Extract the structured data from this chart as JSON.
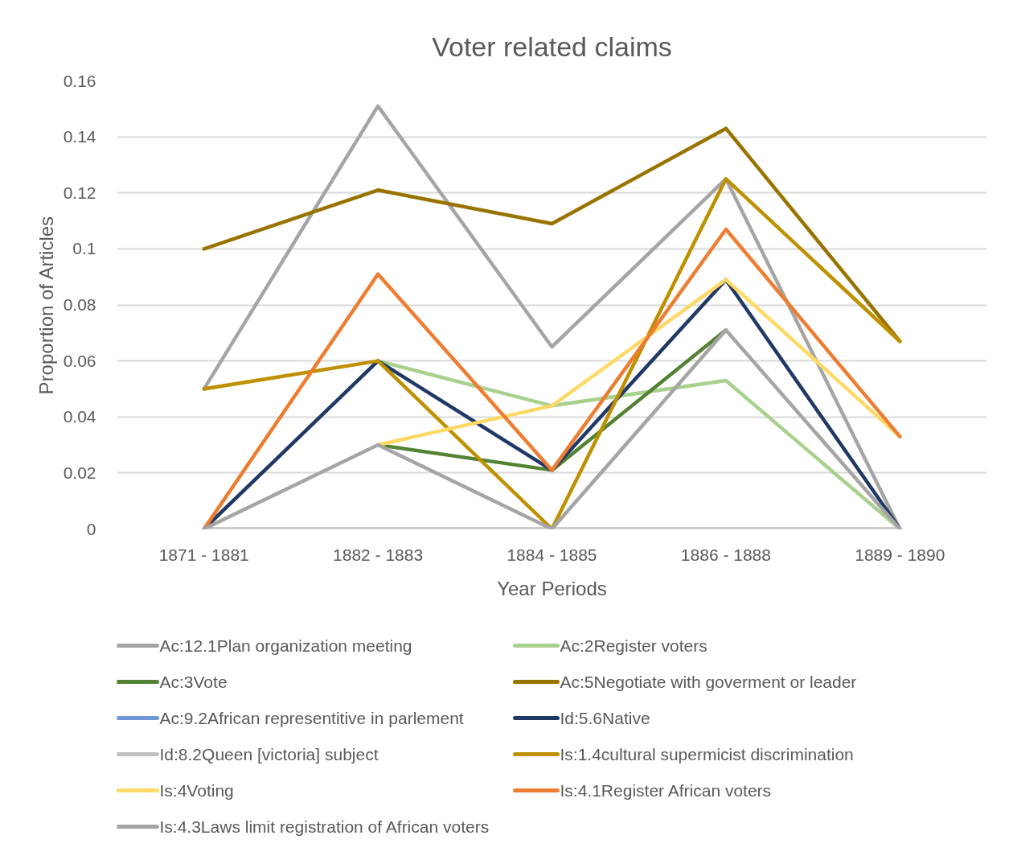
{
  "chart_data": {
    "type": "line",
    "title": "Voter related claims",
    "xlabel": "Year Periods",
    "ylabel": "Proportion of Articles",
    "categories": [
      "1871 - 1881",
      "1882 - 1883",
      "1884 - 1885",
      "1886 - 1888",
      "1889 - 1890"
    ],
    "series": [
      {
        "name": "Ac:12.1Plan organization meeting",
        "color": "#a5a5a5",
        "values": [
          0.05,
          0.151,
          0.065,
          0.125,
          0
        ]
      },
      {
        "name": "Ac:2Register voters",
        "color": "#a9d18e",
        "values": [
          null,
          0.06,
          0.044,
          0.053,
          0
        ]
      },
      {
        "name": "Ac:3Vote",
        "color": "#548235",
        "values": [
          null,
          0.03,
          0.021,
          0.071,
          null
        ]
      },
      {
        "name": "Ac:5Negotiate with goverment or leader",
        "color": "#997300",
        "values": [
          0.1,
          0.121,
          0.109,
          0.143,
          0.067
        ]
      },
      {
        "name": "Ac:9.2African representitive in parlement",
        "color": "#6f97d8",
        "values": [
          null,
          null,
          null,
          null,
          null
        ]
      },
      {
        "name": "Id:5.6Native",
        "color": "#203864",
        "values": [
          0,
          0.06,
          0.021,
          0.089,
          0
        ]
      },
      {
        "name": "Id:8.2Queen [victoria] subject",
        "color": "#bfbfbf",
        "values": [
          0,
          0,
          0,
          0,
          0
        ]
      },
      {
        "name": "Is:1.4cultural supermicist discrimination",
        "color": "#bf9000",
        "values": [
          0.05,
          0.06,
          0,
          0.125,
          0.067
        ]
      },
      {
        "name": "Is:4Voting",
        "color": "#ffd966",
        "values": [
          null,
          0.03,
          0.044,
          0.089,
          0.033
        ]
      },
      {
        "name": "Is:4.1Register African voters",
        "color": "#ed7d31",
        "values": [
          0,
          0.091,
          0.021,
          0.107,
          0.033
        ]
      },
      {
        "name": "Is:4.3Laws limit registration of African voters",
        "color": "#a5a5a5",
        "values": [
          0,
          0.03,
          0,
          0.071,
          0
        ]
      }
    ],
    "ylim": [
      0,
      0.16
    ],
    "yticks": [
      0,
      0.02,
      0.04,
      0.06,
      0.08,
      0.1,
      0.12,
      0.14,
      0.16
    ],
    "grid": "y",
    "legend": "bottom"
  }
}
